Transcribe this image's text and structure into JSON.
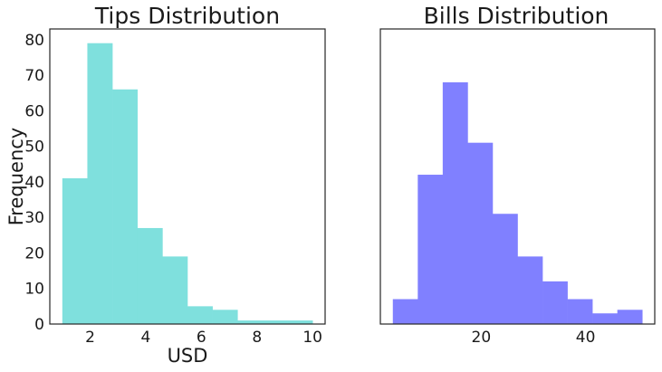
{
  "chart_data": [
    {
      "type": "histogram",
      "title": "Tips Distribution",
      "xlabel": "USD",
      "ylabel": "Frequency",
      "bins": [
        1.0,
        1.9,
        2.8,
        3.7,
        4.6,
        5.5,
        6.4,
        7.3,
        8.2,
        9.1,
        10.0
      ],
      "counts": [
        41,
        79,
        66,
        27,
        19,
        5,
        4,
        1,
        1,
        1
      ],
      "xlim": [
        0.55,
        10.45
      ],
      "ylim": [
        0,
        83
      ],
      "xticks": [
        2,
        4,
        6,
        8,
        10
      ],
      "yticks": [
        0,
        10,
        20,
        30,
        40,
        50,
        60,
        70,
        80
      ],
      "color": "#7fe0dd",
      "grid": false
    },
    {
      "type": "histogram",
      "title": "Bills Distribution",
      "xlabel": "",
      "ylabel": "",
      "bins": [
        3.07,
        7.85,
        12.63,
        17.41,
        22.19,
        26.97,
        31.75,
        36.53,
        41.31,
        46.09,
        50.87
      ],
      "counts": [
        7,
        42,
        68,
        51,
        31,
        19,
        12,
        7,
        3,
        4
      ],
      "xlim": [
        0.68,
        53.26
      ],
      "ylim": [
        0,
        83
      ],
      "xticks": [
        20,
        40
      ],
      "yticks": [],
      "color": "#8080ff",
      "grid": false
    }
  ]
}
